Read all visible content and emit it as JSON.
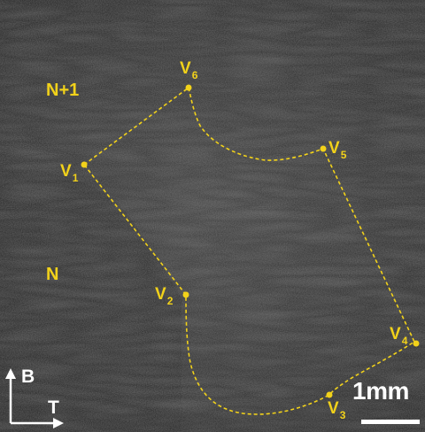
{
  "image": {
    "kind": "micrograph",
    "colors": {
      "annotation": "#f2d21a",
      "text_overlay": "#ffffff",
      "background_dark": "#2b2b2b"
    }
  },
  "regions": {
    "upper": "N+1",
    "lower": "N"
  },
  "vertices": [
    {
      "letter": "V",
      "index": "1"
    },
    {
      "letter": "V",
      "index": "2"
    },
    {
      "letter": "V",
      "index": "3"
    },
    {
      "letter": "V",
      "index": "4"
    },
    {
      "letter": "V",
      "index": "5"
    },
    {
      "letter": "V",
      "index": "6"
    }
  ],
  "axes": {
    "build": "B",
    "transverse": "T"
  },
  "scale_bar": {
    "label": "1mm"
  }
}
